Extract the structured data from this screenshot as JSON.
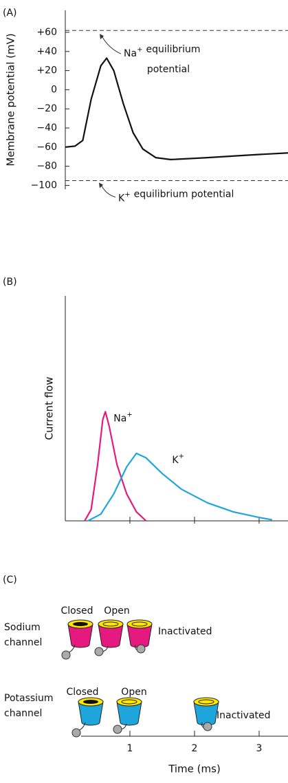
{
  "chart_data": [
    {
      "type": "line",
      "panel": "(A)",
      "ylabel": "Membrane potential (mV)",
      "xlim": [
        0,
        3.45
      ],
      "ylim": [
        -104,
        83
      ],
      "yticks": [
        {
          "value": 60,
          "label": "+60"
        },
        {
          "value": 40,
          "label": "+40"
        },
        {
          "value": 20,
          "label": "+20"
        },
        0,
        {
          "value": -20,
          "label": "−20"
        },
        {
          "value": -40,
          "label": "−40"
        },
        {
          "value": -60,
          "label": "−60"
        },
        {
          "value": -80,
          "label": "−80"
        },
        {
          "value": -100,
          "label": "−100"
        }
      ],
      "reference_lines": [
        {
          "value": 62,
          "ion": "Na",
          "charge": "+",
          "label": [
            "equilibrium",
            "potential"
          ]
        },
        {
          "value": -95,
          "ion": "K",
          "charge": "+",
          "label": [
            "equilibrium potential"
          ]
        }
      ],
      "series": [
        {
          "color": "#111111",
          "x": [
            0,
            0.15,
            0.27,
            0.4,
            0.55,
            0.64,
            0.75,
            0.9,
            1.05,
            1.2,
            1.4,
            1.63,
            2.2,
            2.8,
            3.45
          ],
          "values": [
            -60,
            -59,
            -53,
            -10,
            25,
            33,
            20,
            -15,
            -45,
            -62,
            -71,
            -73,
            -71,
            -68.5,
            -66
          ]
        }
      ]
    },
    {
      "type": "line",
      "panel": "(B)",
      "ylabel": "Current flow",
      "xlim": [
        0,
        3.45
      ],
      "ylim": [
        0,
        100
      ],
      "xticks": [
        1,
        2,
        3
      ],
      "series": [
        {
          "name": "Na",
          "charge": "+",
          "color": "#e5197f",
          "x": [
            0.3,
            0.4,
            0.5,
            0.58,
            0.62,
            0.68,
            0.8,
            0.95,
            1.1,
            1.25
          ],
          "values": [
            0,
            5,
            25,
            45,
            48.5,
            42,
            25,
            12,
            4,
            0
          ]
        },
        {
          "name": "K",
          "charge": "+",
          "color": "#1ea6dc",
          "x": [
            0.35,
            0.55,
            0.75,
            0.95,
            1.1,
            1.25,
            1.5,
            1.8,
            2.2,
            2.6,
            3.0,
            3.2
          ],
          "values": [
            0,
            3,
            12,
            24,
            30,
            28,
            21,
            14,
            8,
            4,
            1.5,
            0.5
          ]
        }
      ]
    },
    {
      "type": "timeline",
      "panel": "(C)",
      "xlabel": "Time (ms)",
      "xlim": [
        0,
        3.45
      ],
      "xticks": [
        1,
        2,
        3
      ],
      "rows": [
        {
          "label": [
            "Sodium",
            "channel"
          ],
          "states": [
            "Closed",
            "Open",
            "Inactivated"
          ],
          "color": "#e5197f"
        },
        {
          "label": [
            "Potassium",
            "channel"
          ],
          "states": [
            "Closed",
            "Open",
            "Inactivated"
          ],
          "color": "#1ea6dc"
        }
      ]
    }
  ]
}
